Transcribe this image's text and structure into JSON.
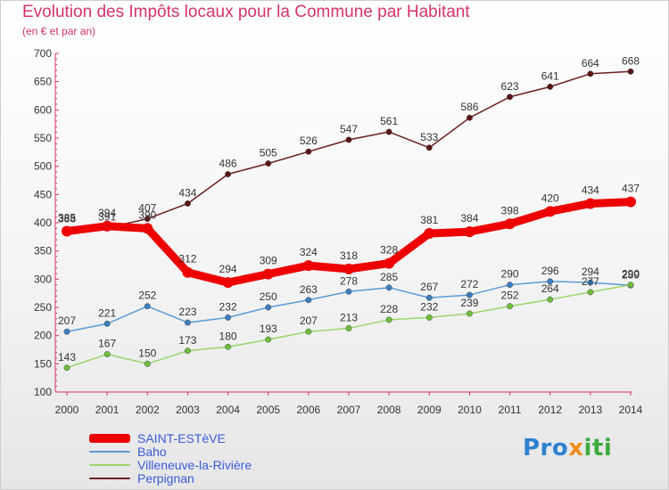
{
  "title": "Evolution des Impôts locaux pour la Commune par Habitant",
  "subtitle": "(en € et par an)",
  "logo": {
    "part1": "Pro",
    "part2": "x",
    "part3": "iti"
  },
  "chart_data": {
    "type": "line",
    "title": "Evolution des Impôts locaux pour la Commune par Habitant",
    "subtitle": "(en € et par an)",
    "x": [
      "2000",
      "2001",
      "2002",
      "2003",
      "2004",
      "2005",
      "2006",
      "2007",
      "2008",
      "2009",
      "2010",
      "2011",
      "2012",
      "2013",
      "2014"
    ],
    "ylim": [
      100,
      700
    ],
    "yticks": [
      100,
      150,
      200,
      250,
      300,
      350,
      400,
      450,
      500,
      550,
      600,
      650,
      700
    ],
    "grid": false,
    "legend_position": "bottom-left",
    "series": [
      {
        "name": "SAINT-ESTèVE",
        "color": "#ee0000",
        "values": [
          385,
          394,
          390,
          312,
          294,
          309,
          324,
          318,
          328,
          381,
          384,
          398,
          420,
          434,
          437
        ]
      },
      {
        "name": "Baho",
        "color": "#5a9bd5",
        "values": [
          207,
          221,
          252,
          223,
          232,
          250,
          263,
          278,
          285,
          267,
          272,
          290,
          296,
          294,
          289
        ]
      },
      {
        "name": "Villeneuve-la-Rivière",
        "color": "#9bd56b",
        "values": [
          143,
          167,
          150,
          173,
          180,
          193,
          207,
          213,
          228,
          232,
          239,
          252,
          264,
          277,
          290
        ]
      },
      {
        "name": "Perpignan",
        "color": "#6b1e1e",
        "values": [
          388,
          391,
          407,
          434,
          486,
          505,
          526,
          547,
          561,
          533,
          586,
          623,
          641,
          664,
          668
        ]
      }
    ]
  }
}
